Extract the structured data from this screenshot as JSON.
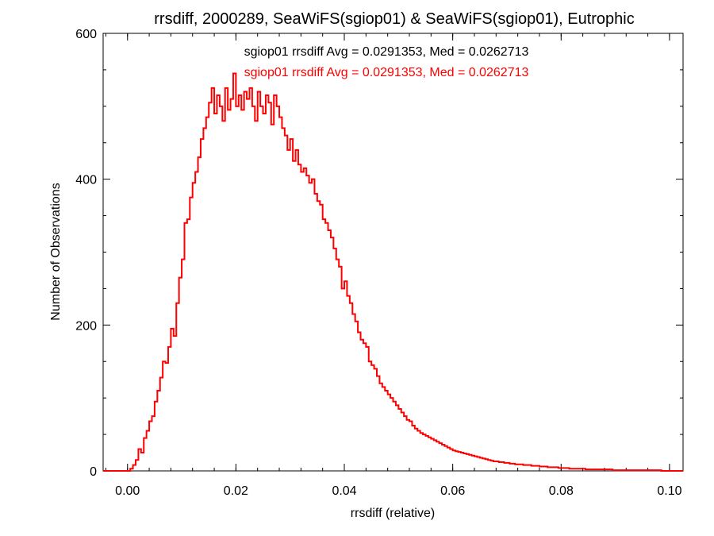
{
  "chart_data": {
    "type": "histogram",
    "title": "rrsdiff, 2000289, SeaWiFS(sgiop01) & SeaWiFS(sgiop01), Eutrophic",
    "xlabel": "rrsdiff (relative)",
    "ylabel": "Number of Observations",
    "xlim": [
      -0.0045,
      0.1025
    ],
    "ylim": [
      0,
      600
    ],
    "xticks": [
      0.0,
      0.02,
      0.04,
      0.06,
      0.08,
      0.1
    ],
    "xtick_labels": [
      "0.00",
      "0.02",
      "0.04",
      "0.06",
      "0.08",
      "0.10"
    ],
    "yticks": [
      0,
      200,
      400,
      600
    ],
    "ytick_labels": [
      "0",
      "200",
      "400",
      "600"
    ],
    "annotations": [
      {
        "text": "sgiop01 rrsdiff Avg = 0.0291353, Med = 0.0262713",
        "color": "#000000"
      },
      {
        "text": "sgiop01 rrsdiff Avg = 0.0291353, Med = 0.0262713",
        "color": "#ff0000"
      }
    ],
    "bin_width": 0.0005,
    "series": [
      {
        "color": "#ff0000",
        "points": [
          [
            -0.0045,
            0
          ],
          [
            0.0,
            0
          ],
          [
            0.0005,
            3
          ],
          [
            0.001,
            8
          ],
          [
            0.0015,
            15
          ],
          [
            0.002,
            30
          ],
          [
            0.0025,
            25
          ],
          [
            0.003,
            45
          ],
          [
            0.0035,
            55
          ],
          [
            0.004,
            68
          ],
          [
            0.0045,
            75
          ],
          [
            0.005,
            95
          ],
          [
            0.0055,
            110
          ],
          [
            0.006,
            128
          ],
          [
            0.0065,
            150
          ],
          [
            0.007,
            148
          ],
          [
            0.0075,
            170
          ],
          [
            0.008,
            195
          ],
          [
            0.0085,
            185
          ],
          [
            0.009,
            230
          ],
          [
            0.0095,
            265
          ],
          [
            0.01,
            290
          ],
          [
            0.0105,
            340
          ],
          [
            0.011,
            345
          ],
          [
            0.0115,
            375
          ],
          [
            0.012,
            395
          ],
          [
            0.0125,
            410
          ],
          [
            0.013,
            430
          ],
          [
            0.0135,
            455
          ],
          [
            0.014,
            470
          ],
          [
            0.0145,
            485
          ],
          [
            0.015,
            505
          ],
          [
            0.0155,
            525
          ],
          [
            0.016,
            490
          ],
          [
            0.0165,
            515
          ],
          [
            0.017,
            500
          ],
          [
            0.0175,
            480
          ],
          [
            0.018,
            525
          ],
          [
            0.0185,
            495
          ],
          [
            0.019,
            510
          ],
          [
            0.0195,
            545
          ],
          [
            0.02,
            500
          ],
          [
            0.0205,
            515
          ],
          [
            0.021,
            495
          ],
          [
            0.0215,
            520
          ],
          [
            0.022,
            510
          ],
          [
            0.0225,
            525
          ],
          [
            0.023,
            500
          ],
          [
            0.0235,
            480
          ],
          [
            0.024,
            520
          ],
          [
            0.0245,
            500
          ],
          [
            0.025,
            490
          ],
          [
            0.0255,
            515
          ],
          [
            0.026,
            505
          ],
          [
            0.0265,
            475
          ],
          [
            0.027,
            515
          ],
          [
            0.0275,
            500
          ],
          [
            0.028,
            485
          ],
          [
            0.0285,
            470
          ],
          [
            0.029,
            460
          ],
          [
            0.0295,
            440
          ],
          [
            0.03,
            455
          ],
          [
            0.0305,
            425
          ],
          [
            0.031,
            440
          ],
          [
            0.0315,
            420
          ],
          [
            0.032,
            410
          ],
          [
            0.0325,
            415
          ],
          [
            0.033,
            405
          ],
          [
            0.0335,
            395
          ],
          [
            0.034,
            400
          ],
          [
            0.0345,
            380
          ],
          [
            0.035,
            370
          ],
          [
            0.0355,
            365
          ],
          [
            0.036,
            345
          ],
          [
            0.0365,
            340
          ],
          [
            0.037,
            330
          ],
          [
            0.0375,
            320
          ],
          [
            0.038,
            305
          ],
          [
            0.0385,
            290
          ],
          [
            0.039,
            280
          ],
          [
            0.0395,
            250
          ],
          [
            0.04,
            260
          ],
          [
            0.0405,
            240
          ],
          [
            0.041,
            230
          ],
          [
            0.0415,
            215
          ],
          [
            0.042,
            205
          ],
          [
            0.0425,
            190
          ],
          [
            0.043,
            180
          ],
          [
            0.0435,
            175
          ],
          [
            0.044,
            170
          ],
          [
            0.0445,
            150
          ],
          [
            0.045,
            145
          ],
          [
            0.0455,
            140
          ],
          [
            0.046,
            130
          ],
          [
            0.0465,
            120
          ],
          [
            0.047,
            115
          ],
          [
            0.0475,
            110
          ],
          [
            0.048,
            105
          ],
          [
            0.0485,
            100
          ],
          [
            0.049,
            95
          ],
          [
            0.0495,
            90
          ],
          [
            0.05,
            85
          ],
          [
            0.0505,
            80
          ],
          [
            0.051,
            75
          ],
          [
            0.0515,
            70
          ],
          [
            0.052,
            68
          ],
          [
            0.0525,
            62
          ],
          [
            0.053,
            58
          ],
          [
            0.0535,
            55
          ],
          [
            0.054,
            52
          ],
          [
            0.0545,
            50
          ],
          [
            0.055,
            48
          ],
          [
            0.0555,
            46
          ],
          [
            0.056,
            44
          ],
          [
            0.0565,
            42
          ],
          [
            0.057,
            40
          ],
          [
            0.0575,
            38
          ],
          [
            0.058,
            36
          ],
          [
            0.0585,
            34
          ],
          [
            0.059,
            32
          ],
          [
            0.0595,
            30
          ],
          [
            0.06,
            28
          ],
          [
            0.0605,
            27
          ],
          [
            0.061,
            26
          ],
          [
            0.0615,
            25
          ],
          [
            0.062,
            24
          ],
          [
            0.0625,
            23
          ],
          [
            0.063,
            22
          ],
          [
            0.0635,
            21
          ],
          [
            0.064,
            20
          ],
          [
            0.0645,
            19
          ],
          [
            0.065,
            18
          ],
          [
            0.0655,
            17
          ],
          [
            0.066,
            16
          ],
          [
            0.0665,
            15
          ],
          [
            0.067,
            14
          ],
          [
            0.0675,
            13
          ],
          [
            0.068,
            13
          ],
          [
            0.0685,
            12
          ],
          [
            0.069,
            12
          ],
          [
            0.0695,
            11
          ],
          [
            0.07,
            11
          ],
          [
            0.0705,
            10
          ],
          [
            0.071,
            10
          ],
          [
            0.0715,
            9
          ],
          [
            0.072,
            9
          ],
          [
            0.0725,
            9
          ],
          [
            0.073,
            8
          ],
          [
            0.0735,
            8
          ],
          [
            0.074,
            8
          ],
          [
            0.0745,
            7
          ],
          [
            0.075,
            7
          ],
          [
            0.0755,
            7
          ],
          [
            0.076,
            6
          ],
          [
            0.0765,
            6
          ],
          [
            0.077,
            6
          ],
          [
            0.0775,
            5
          ],
          [
            0.078,
            5
          ],
          [
            0.0785,
            5
          ],
          [
            0.079,
            5
          ],
          [
            0.0795,
            4
          ],
          [
            0.08,
            4
          ],
          [
            0.0805,
            4
          ],
          [
            0.081,
            4
          ],
          [
            0.0815,
            3
          ],
          [
            0.082,
            3
          ],
          [
            0.0825,
            3
          ],
          [
            0.083,
            3
          ],
          [
            0.0835,
            3
          ],
          [
            0.084,
            3
          ],
          [
            0.0845,
            2
          ],
          [
            0.085,
            2
          ],
          [
            0.0855,
            2
          ],
          [
            0.086,
            2
          ],
          [
            0.0865,
            2
          ],
          [
            0.087,
            2
          ],
          [
            0.0875,
            2
          ],
          [
            0.088,
            2
          ],
          [
            0.0885,
            2
          ],
          [
            0.089,
            2
          ],
          [
            0.0895,
            1
          ],
          [
            0.09,
            1
          ],
          [
            0.0905,
            1
          ],
          [
            0.091,
            1
          ],
          [
            0.0915,
            1
          ],
          [
            0.092,
            1
          ],
          [
            0.0925,
            1
          ],
          [
            0.093,
            1
          ],
          [
            0.0935,
            1
          ],
          [
            0.094,
            1
          ],
          [
            0.0945,
            1
          ],
          [
            0.095,
            1
          ],
          [
            0.0955,
            1
          ],
          [
            0.096,
            1
          ],
          [
            0.0965,
            1
          ],
          [
            0.097,
            1
          ],
          [
            0.0975,
            1
          ],
          [
            0.098,
            1
          ],
          [
            0.0985,
            0
          ],
          [
            0.099,
            0
          ],
          [
            0.0995,
            0
          ],
          [
            0.1,
            0
          ],
          [
            0.1005,
            0
          ],
          [
            0.101,
            0
          ],
          [
            0.1015,
            0
          ],
          [
            0.102,
            0
          ]
        ]
      }
    ]
  }
}
